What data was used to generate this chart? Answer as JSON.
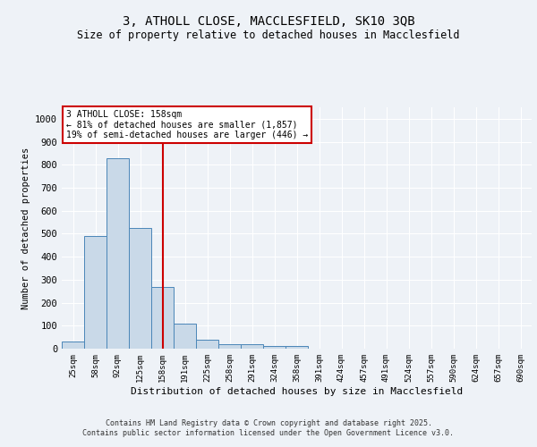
{
  "title_line1": "3, ATHOLL CLOSE, MACCLESFIELD, SK10 3QB",
  "title_line2": "Size of property relative to detached houses in Macclesfield",
  "xlabel": "Distribution of detached houses by size in Macclesfield",
  "ylabel": "Number of detached properties",
  "categories": [
    "25sqm",
    "58sqm",
    "92sqm",
    "125sqm",
    "158sqm",
    "191sqm",
    "225sqm",
    "258sqm",
    "291sqm",
    "324sqm",
    "358sqm",
    "391sqm",
    "424sqm",
    "457sqm",
    "491sqm",
    "524sqm",
    "557sqm",
    "590sqm",
    "624sqm",
    "657sqm",
    "690sqm"
  ],
  "values": [
    30,
    490,
    830,
    525,
    270,
    110,
    40,
    18,
    18,
    10,
    10,
    0,
    0,
    0,
    0,
    0,
    0,
    0,
    0,
    0,
    0
  ],
  "bar_color": "#c9d9e8",
  "bar_edge_color": "#4a86b8",
  "red_line_x": 4,
  "annotation_line1": "3 ATHOLL CLOSE: 158sqm",
  "annotation_line2": "← 81% of detached houses are smaller (1,857)",
  "annotation_line3": "19% of semi-detached houses are larger (446) →",
  "annotation_box_color": "#ffffff",
  "annotation_box_edge": "#cc0000",
  "ylim": [
    0,
    1050
  ],
  "yticks": [
    0,
    100,
    200,
    300,
    400,
    500,
    600,
    700,
    800,
    900,
    1000
  ],
  "footer_line1": "Contains HM Land Registry data © Crown copyright and database right 2025.",
  "footer_line2": "Contains public sector information licensed under the Open Government Licence v3.0.",
  "bg_color": "#eef2f7",
  "plot_bg_color": "#eef2f7",
  "grid_color": "#ffffff"
}
